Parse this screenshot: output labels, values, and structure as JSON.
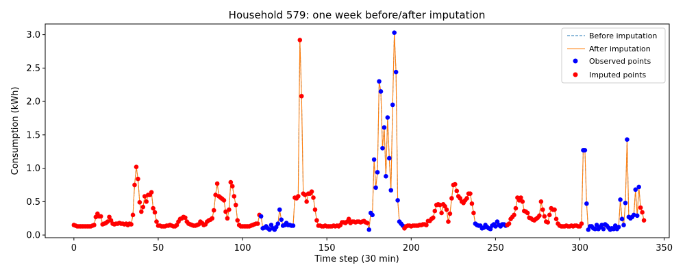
{
  "chart_data": {
    "type": "line",
    "title": "Household 579: one week before/after imputation",
    "xlabel": "Time step (30 min)",
    "ylabel": "Consumption (kWh)",
    "xlim": [
      -17,
      353
    ],
    "ylim": [
      -0.04,
      3.16
    ],
    "xticks": [
      0,
      50,
      100,
      150,
      200,
      250,
      300,
      350
    ],
    "yticks": [
      0.0,
      0.5,
      1.0,
      1.5,
      2.0,
      2.5,
      3.0
    ],
    "xtick_labels": [
      "0",
      "50",
      "100",
      "150",
      "200",
      "250",
      "300",
      "350"
    ],
    "ytick_labels": [
      "0.0",
      "0.5",
      "1.0",
      "1.5",
      "2.0",
      "2.5",
      "3.0"
    ],
    "grid": false,
    "legend_position": "top-right",
    "legend": {
      "before": "Before imputation",
      "after": "After imputation",
      "observed": "Observed points",
      "imputed": "Imputed points"
    },
    "colors": {
      "before": "#1f77b4",
      "after": "#ff7f0e",
      "observed": "#0000ff",
      "imputed": "#ff0000"
    },
    "values": [
      0.15,
      0.14,
      0.13,
      0.13,
      0.13,
      0.13,
      0.13,
      0.13,
      0.13,
      0.13,
      0.13,
      0.14,
      0.15,
      0.27,
      0.32,
      0.28,
      0.28,
      0.16,
      0.17,
      0.18,
      0.2,
      0.27,
      0.22,
      0.17,
      0.16,
      0.17,
      0.17,
      0.18,
      0.17,
      0.17,
      0.16,
      0.17,
      0.15,
      0.17,
      0.16,
      0.3,
      0.75,
      1.02,
      0.84,
      0.49,
      0.35,
      0.42,
      0.58,
      0.5,
      0.6,
      0.6,
      0.64,
      0.4,
      0.34,
      0.2,
      0.14,
      0.14,
      0.13,
      0.13,
      0.13,
      0.14,
      0.14,
      0.15,
      0.14,
      0.13,
      0.13,
      0.15,
      0.2,
      0.24,
      0.25,
      0.27,
      0.26,
      0.2,
      0.17,
      0.16,
      0.15,
      0.14,
      0.14,
      0.15,
      0.16,
      0.2,
      0.18,
      0.15,
      0.16,
      0.2,
      0.22,
      0.23,
      0.25,
      0.37,
      0.6,
      0.77,
      0.58,
      0.56,
      0.54,
      0.52,
      0.35,
      0.25,
      0.38,
      0.79,
      0.73,
      0.58,
      0.45,
      0.22,
      0.15,
      0.13,
      0.13,
      0.13,
      0.13,
      0.13,
      0.13,
      0.14,
      0.15,
      0.16,
      0.17,
      0.17,
      0.3,
      0.28,
      0.1,
      0.11,
      0.13,
      0.1,
      0.08,
      0.15,
      0.1,
      0.08,
      0.12,
      0.17,
      0.38,
      0.23,
      0.14,
      0.15,
      0.18,
      0.15,
      0.15,
      0.14,
      0.14,
      0.56,
      0.55,
      0.58,
      2.92,
      2.08,
      0.62,
      0.6,
      0.5,
      0.62,
      0.62,
      0.65,
      0.56,
      0.38,
      0.22,
      0.14,
      0.14,
      0.13,
      0.13,
      0.14,
      0.13,
      0.13,
      0.13,
      0.13,
      0.14,
      0.13,
      0.14,
      0.13,
      0.15,
      0.19,
      0.19,
      0.18,
      0.2,
      0.24,
      0.18,
      0.2,
      0.2,
      0.19,
      0.2,
      0.2,
      0.19,
      0.2,
      0.21,
      0.19,
      0.18,
      0.08,
      0.33,
      0.3,
      1.13,
      0.71,
      0.94,
      2.3,
      2.15,
      1.3,
      1.61,
      0.88,
      1.76,
      1.15,
      0.67,
      1.95,
      3.03,
      2.44,
      0.52,
      0.2,
      0.17,
      0.14,
      0.1,
      0.13,
      0.14,
      0.14,
      0.13,
      0.14,
      0.14,
      0.14,
      0.14,
      0.15,
      0.15,
      0.16,
      0.16,
      0.15,
      0.21,
      0.21,
      0.24,
      0.26,
      0.36,
      0.45,
      0.46,
      0.45,
      0.33,
      0.46,
      0.43,
      0.38,
      0.2,
      0.32,
      0.55,
      0.75,
      0.76,
      0.66,
      0.58,
      0.55,
      0.5,
      0.48,
      0.52,
      0.55,
      0.62,
      0.62,
      0.47,
      0.33,
      0.17,
      0.15,
      0.14,
      0.14,
      0.1,
      0.11,
      0.15,
      0.12,
      0.1,
      0.09,
      0.14,
      0.16,
      0.13,
      0.2,
      0.15,
      0.13,
      0.16,
      0.16,
      0.14,
      0.15,
      0.17,
      0.24,
      0.27,
      0.3,
      0.4,
      0.56,
      0.52,
      0.56,
      0.5,
      0.36,
      0.35,
      0.33,
      0.26,
      0.25,
      0.23,
      0.22,
      0.24,
      0.26,
      0.29,
      0.5,
      0.38,
      0.28,
      0.2,
      0.19,
      0.3,
      0.4,
      0.38,
      0.38,
      0.24,
      0.17,
      0.14,
      0.13,
      0.13,
      0.13,
      0.14,
      0.13,
      0.13,
      0.14,
      0.13,
      0.14,
      0.14,
      0.13,
      0.13,
      0.17,
      1.27,
      1.27,
      0.47,
      0.08,
      0.13,
      0.13,
      0.1,
      0.09,
      0.15,
      0.09,
      0.12,
      0.15,
      0.09,
      0.16,
      0.14,
      0.11,
      0.08,
      0.1,
      0.09,
      0.14,
      0.09,
      0.12,
      0.53,
      0.24,
      0.15,
      0.48,
      1.43,
      0.27,
      0.25,
      0.27,
      0.3,
      0.68,
      0.29,
      0.72,
      0.41,
      0.34,
      0.22
    ],
    "observed_ranges": [
      [
        111,
        130
      ],
      [
        175,
        195
      ],
      [
        238,
        256
      ],
      [
        302,
        335
      ]
    ]
  }
}
